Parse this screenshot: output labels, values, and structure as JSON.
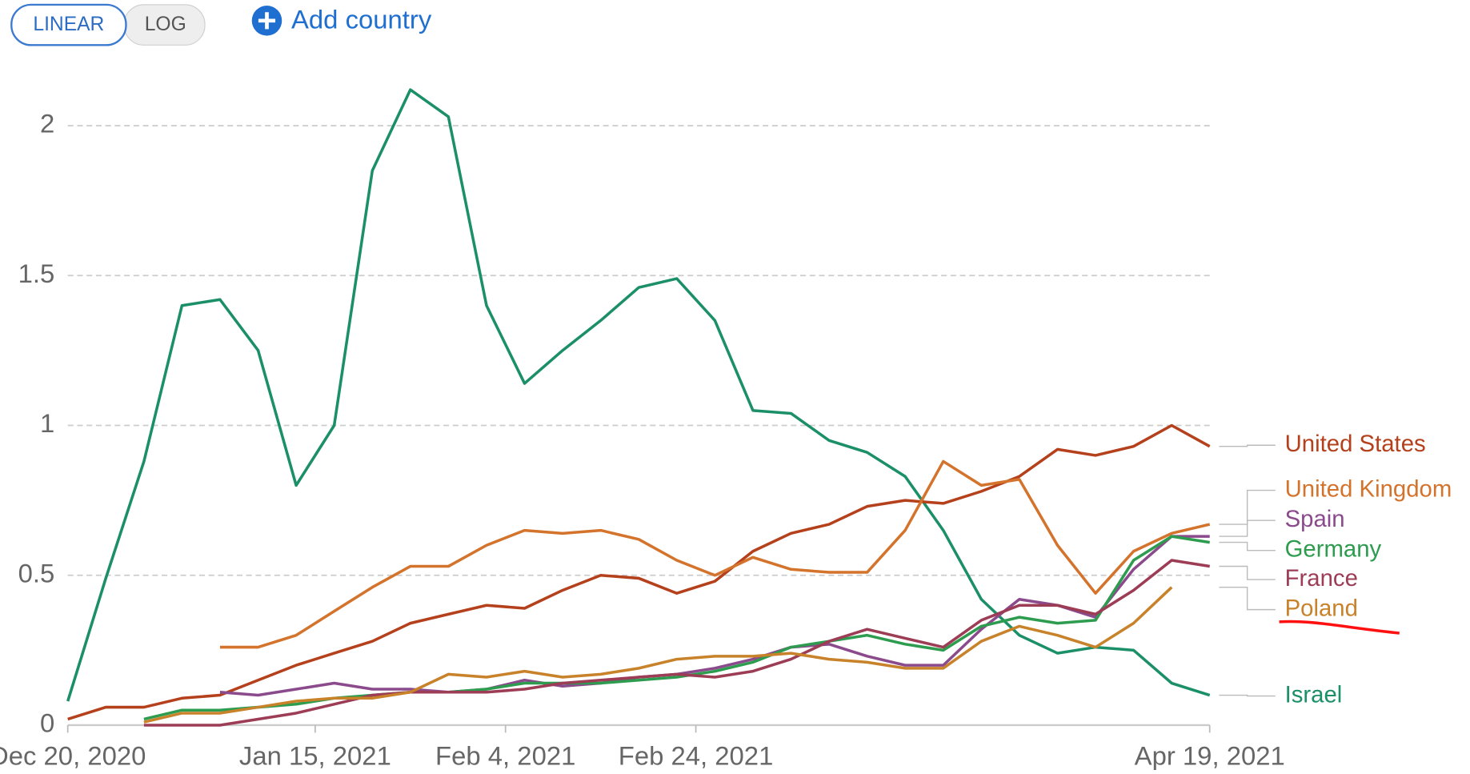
{
  "controls": {
    "scale_buttons": [
      "LINEAR",
      "LOG"
    ],
    "add_country": "Add country"
  },
  "chart_data": {
    "type": "line",
    "x": [
      "2020-12-20",
      "2020-12-24",
      "2020-12-28",
      "2021-01-01",
      "2021-01-05",
      "2021-01-09",
      "2021-01-13",
      "2021-01-17",
      "2021-01-21",
      "2021-01-25",
      "2021-01-29",
      "2021-02-02",
      "2021-02-06",
      "2021-02-10",
      "2021-02-14",
      "2021-02-18",
      "2021-02-22",
      "2021-02-26",
      "2021-03-02",
      "2021-03-06",
      "2021-03-10",
      "2021-03-14",
      "2021-03-18",
      "2021-03-22",
      "2021-03-26",
      "2021-03-30",
      "2021-04-03",
      "2021-04-07",
      "2021-04-11",
      "2021-04-15",
      "2021-04-19"
    ],
    "xlim": [
      "2020-12-20",
      "2021-04-19"
    ],
    "xticks": [
      {
        "value": "2020-12-20",
        "label": "Dec 20, 2020"
      },
      {
        "value": "2021-01-15",
        "label": "Jan 15, 2021"
      },
      {
        "value": "2021-02-04",
        "label": "Feb 4, 2021"
      },
      {
        "value": "2021-02-24",
        "label": "Feb 24, 2021"
      },
      {
        "value": "2021-04-19",
        "label": "Apr 19, 2021"
      }
    ],
    "ylim": [
      0,
      2.2
    ],
    "yticks": [
      0,
      0.5,
      1,
      1.5,
      2
    ],
    "grid": true,
    "series": [
      {
        "name": "Israel",
        "color": "#1b8f67",
        "values": [
          0.08,
          0.49,
          0.88,
          1.4,
          1.42,
          1.25,
          0.8,
          1.0,
          1.85,
          2.12,
          2.03,
          1.4,
          1.14,
          1.25,
          1.35,
          1.46,
          1.49,
          1.35,
          1.05,
          1.04,
          0.95,
          0.91,
          0.83,
          0.65,
          0.42,
          0.3,
          0.24,
          0.26,
          0.25,
          0.14,
          0.1
        ]
      },
      {
        "name": "United States",
        "color": "#b5401c",
        "values": [
          0.02,
          0.06,
          0.06,
          0.09,
          0.1,
          0.15,
          0.2,
          0.24,
          0.28,
          0.34,
          0.37,
          0.4,
          0.39,
          0.45,
          0.5,
          0.49,
          0.44,
          0.48,
          0.58,
          0.64,
          0.67,
          0.73,
          0.75,
          0.74,
          0.78,
          0.83,
          0.92,
          0.9,
          0.93,
          1.0,
          0.93
        ]
      },
      {
        "name": "United Kingdom",
        "color": "#d3732c",
        "values": [
          null,
          null,
          null,
          null,
          0.26,
          0.26,
          0.3,
          0.38,
          0.46,
          0.53,
          0.53,
          0.6,
          0.65,
          0.64,
          0.65,
          0.62,
          0.55,
          0.5,
          0.56,
          0.52,
          0.51,
          0.51,
          0.65,
          0.88,
          0.8,
          0.82,
          0.6,
          0.44,
          0.58,
          0.64,
          0.67
        ]
      },
      {
        "name": "Spain",
        "color": "#8a4a8c",
        "values": [
          null,
          null,
          null,
          null,
          0.11,
          0.1,
          0.12,
          0.14,
          0.12,
          0.12,
          0.11,
          0.12,
          0.15,
          0.13,
          0.14,
          0.16,
          0.17,
          0.19,
          0.22,
          0.26,
          0.27,
          0.23,
          0.2,
          0.2,
          0.32,
          0.42,
          0.4,
          0.36,
          0.52,
          0.63,
          0.63
        ]
      },
      {
        "name": "Germany",
        "color": "#2d9c4f",
        "values": [
          null,
          null,
          0.02,
          0.05,
          0.05,
          0.06,
          0.07,
          0.09,
          0.1,
          0.11,
          0.11,
          0.12,
          0.14,
          0.14,
          0.14,
          0.15,
          0.16,
          0.18,
          0.21,
          0.26,
          0.28,
          0.3,
          0.27,
          0.25,
          0.33,
          0.36,
          0.34,
          0.35,
          0.55,
          0.63,
          0.61
        ]
      },
      {
        "name": "France",
        "color": "#9c3c55",
        "values": [
          null,
          null,
          0,
          0,
          0,
          0.02,
          0.04,
          0.07,
          0.1,
          0.11,
          0.11,
          0.11,
          0.12,
          0.14,
          0.15,
          0.16,
          0.17,
          0.16,
          0.18,
          0.22,
          0.28,
          0.32,
          0.29,
          0.26,
          0.35,
          0.4,
          0.4,
          0.37,
          0.45,
          0.55,
          0.53
        ]
      },
      {
        "name": "Poland",
        "color": "#c8822a",
        "values": [
          null,
          null,
          0.01,
          0.04,
          0.04,
          0.06,
          0.08,
          0.09,
          0.09,
          0.11,
          0.17,
          0.16,
          0.18,
          0.16,
          0.17,
          0.19,
          0.22,
          0.23,
          0.23,
          0.24,
          0.22,
          0.21,
          0.19,
          0.19,
          0.28,
          0.33,
          0.3,
          0.26,
          0.34,
          0.46,
          null
        ]
      }
    ]
  }
}
